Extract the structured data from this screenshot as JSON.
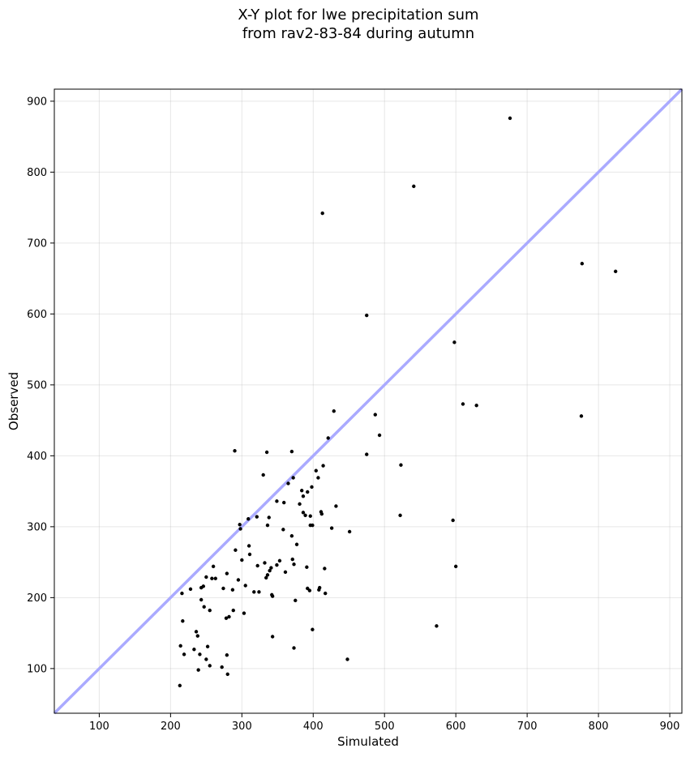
{
  "chart_data": {
    "type": "scatter",
    "title_lines": [
      "X-Y plot for lwe precipitation sum",
      "from rav2-83-84 during autumn"
    ],
    "xlabel": "Simulated",
    "ylabel": "Observed",
    "xlim": [
      37,
      917
    ],
    "ylim": [
      37,
      917
    ],
    "xticks": [
      100,
      200,
      300,
      400,
      500,
      600,
      700,
      800,
      900
    ],
    "yticks": [
      100,
      200,
      300,
      400,
      500,
      600,
      700,
      800,
      900
    ],
    "grid": true,
    "reference_line": {
      "type": "identity",
      "color": "#aaaaff"
    },
    "point_color": "#000000",
    "points": [
      [
        213,
        76
      ],
      [
        214,
        132
      ],
      [
        216,
        206
      ],
      [
        217,
        167
      ],
      [
        219,
        120
      ],
      [
        228,
        212
      ],
      [
        233,
        127
      ],
      [
        236,
        152
      ],
      [
        238,
        146
      ],
      [
        239,
        98
      ],
      [
        241,
        120
      ],
      [
        243,
        214
      ],
      [
        243,
        197
      ],
      [
        246,
        216
      ],
      [
        247,
        187
      ],
      [
        250,
        113
      ],
      [
        250,
        229
      ],
      [
        252,
        131
      ],
      [
        255,
        104
      ],
      [
        255,
        182
      ],
      [
        258,
        227
      ],
      [
        260,
        244
      ],
      [
        263,
        227
      ],
      [
        272,
        102
      ],
      [
        274,
        213
      ],
      [
        278,
        171
      ],
      [
        279,
        234
      ],
      [
        279,
        119
      ],
      [
        280,
        92
      ],
      [
        282,
        173
      ],
      [
        287,
        211
      ],
      [
        288,
        182
      ],
      [
        290,
        407
      ],
      [
        291,
        267
      ],
      [
        295,
        225
      ],
      [
        297,
        303
      ],
      [
        298,
        297
      ],
      [
        300,
        253
      ],
      [
        303,
        178
      ],
      [
        305,
        217
      ],
      [
        309,
        311
      ],
      [
        310,
        273
      ],
      [
        311,
        261
      ],
      [
        317,
        208
      ],
      [
        321,
        314
      ],
      [
        322,
        245
      ],
      [
        324,
        208
      ],
      [
        330,
        373
      ],
      [
        332,
        249
      ],
      [
        334,
        228
      ],
      [
        335,
        405
      ],
      [
        336,
        302
      ],
      [
        336,
        232
      ],
      [
        338,
        313
      ],
      [
        339,
        238
      ],
      [
        341,
        242
      ],
      [
        342,
        204
      ],
      [
        343,
        145
      ],
      [
        343,
        202
      ],
      [
        349,
        336
      ],
      [
        349,
        246
      ],
      [
        353,
        252
      ],
      [
        358,
        296
      ],
      [
        359,
        334
      ],
      [
        361,
        236
      ],
      [
        365,
        361
      ],
      [
        370,
        406
      ],
      [
        370,
        287
      ],
      [
        371,
        254
      ],
      [
        372,
        369
      ],
      [
        373,
        129
      ],
      [
        373,
        247
      ],
      [
        375,
        196
      ],
      [
        377,
        275
      ],
      [
        381,
        332
      ],
      [
        384,
        351
      ],
      [
        386,
        343
      ],
      [
        386,
        320
      ],
      [
        389,
        316
      ],
      [
        391,
        243
      ],
      [
        392,
        213
      ],
      [
        392,
        349
      ],
      [
        395,
        210
      ],
      [
        396,
        302
      ],
      [
        396,
        315
      ],
      [
        398,
        356
      ],
      [
        399,
        302
      ],
      [
        399,
        155
      ],
      [
        404,
        379
      ],
      [
        407,
        369
      ],
      [
        408,
        211
      ],
      [
        409,
        214
      ],
      [
        411,
        321
      ],
      [
        412,
        318
      ],
      [
        413,
        742
      ],
      [
        414,
        386
      ],
      [
        416,
        241
      ],
      [
        417,
        206
      ],
      [
        421,
        425
      ],
      [
        426,
        298
      ],
      [
        429,
        463
      ],
      [
        432,
        329
      ],
      [
        448,
        113
      ],
      [
        451,
        293
      ],
      [
        475,
        598
      ],
      [
        475,
        402
      ],
      [
        487,
        458
      ],
      [
        493,
        429
      ],
      [
        522,
        316
      ],
      [
        523,
        387
      ],
      [
        541,
        780
      ],
      [
        573,
        160
      ],
      [
        596,
        309
      ],
      [
        598,
        560
      ],
      [
        600,
        244
      ],
      [
        610,
        473
      ],
      [
        629,
        471
      ],
      [
        676,
        876
      ],
      [
        776,
        456
      ],
      [
        777,
        671
      ],
      [
        824,
        660
      ]
    ]
  }
}
